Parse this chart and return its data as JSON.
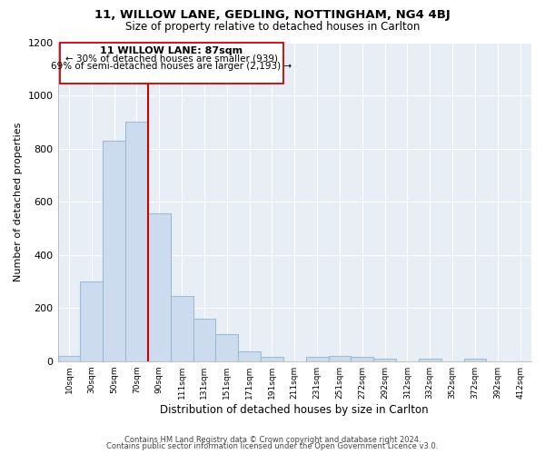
{
  "title": "11, WILLOW LANE, GEDLING, NOTTINGHAM, NG4 4BJ",
  "subtitle": "Size of property relative to detached houses in Carlton",
  "xlabel": "Distribution of detached houses by size in Carlton",
  "ylabel": "Number of detached properties",
  "bar_labels": [
    "10sqm",
    "30sqm",
    "50sqm",
    "70sqm",
    "90sqm",
    "111sqm",
    "131sqm",
    "151sqm",
    "171sqm",
    "191sqm",
    "211sqm",
    "231sqm",
    "251sqm",
    "272sqm",
    "292sqm",
    "312sqm",
    "332sqm",
    "352sqm",
    "372sqm",
    "392sqm",
    "412sqm"
  ],
  "bar_values": [
    20,
    300,
    830,
    900,
    555,
    245,
    160,
    100,
    38,
    15,
    0,
    15,
    20,
    15,
    10,
    0,
    10,
    0,
    8,
    0,
    0
  ],
  "bar_color": "#ccdcee",
  "bar_edge_color": "#9bbbd9",
  "vline_color": "#cc0000",
  "annotation_title": "11 WILLOW LANE: 87sqm",
  "annotation_line1": "← 30% of detached houses are smaller (939)",
  "annotation_line2": "69% of semi-detached houses are larger (2,193) →",
  "annotation_box_color": "#ffffff",
  "annotation_box_edge": "#cc0000",
  "footer1": "Contains HM Land Registry data © Crown copyright and database right 2024.",
  "footer2": "Contains public sector information licensed under the Open Government Licence v3.0.",
  "ylim": [
    0,
    1200
  ],
  "yticks": [
    0,
    200,
    400,
    600,
    800,
    1000,
    1200
  ],
  "background_color": "#ffffff",
  "plot_bg_color": "#e8eef5",
  "grid_color": "#ffffff"
}
